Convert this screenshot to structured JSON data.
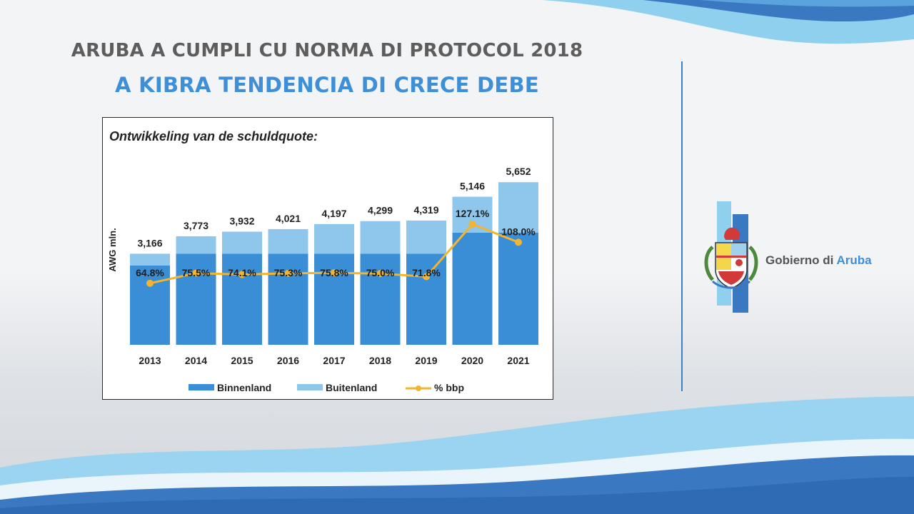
{
  "slide": {
    "title_line1": "ARUBA A CUMPLI CU NORMA DI PROTOCOL 2018",
    "title_line2": "A KIBRA TENDENCIA DI CRECE DEBE"
  },
  "brand": {
    "prefix": "Gobierno di",
    "name": "Aruba",
    "accent_color": "#3d8fd8"
  },
  "colors": {
    "binnenland": "#3a8ed6",
    "buitenland": "#8fc6ec",
    "line": "#f2b431",
    "wave_light": "#7fc6ea",
    "wave_dark": "#3b78c2"
  },
  "chart_data": {
    "type": "bar",
    "title": "Ontwikkeling van de schuldquote:",
    "ylabel": "AWG mln.",
    "xlabel": "",
    "categories": [
      "2013",
      "2014",
      "2015",
      "2016",
      "2017",
      "2018",
      "2019",
      "2020",
      "2021"
    ],
    "total_labels": [
      "3,166",
      "3,773",
      "3,932",
      "4,021",
      "4,197",
      "4,299",
      "4,319",
      "5,146",
      "5,652"
    ],
    "series": [
      {
        "name": "Binnenland",
        "values": [
          2760,
          3170,
          3170,
          3170,
          3170,
          3170,
          3170,
          3900,
          3900
        ]
      },
      {
        "name": "Buitenland",
        "values": [
          406,
          603,
          762,
          851,
          1027,
          1129,
          1149,
          1246,
          1752
        ]
      }
    ],
    "ratio": {
      "name": "% bbp",
      "values": [
        64.8,
        75.5,
        74.1,
        75.3,
        75.8,
        75.0,
        71.8,
        127.1,
        108.0
      ],
      "labels": [
        "64.8%",
        "75.5%",
        "74.1%",
        "75.3%",
        "75.8%",
        "75.0%",
        "71.8%",
        "127.1%",
        "108.0%"
      ]
    },
    "ylim": [
      0,
      6600
    ],
    "ratio_ylim": [
      0,
      200
    ],
    "legend_position": "bottom",
    "grid": false
  }
}
